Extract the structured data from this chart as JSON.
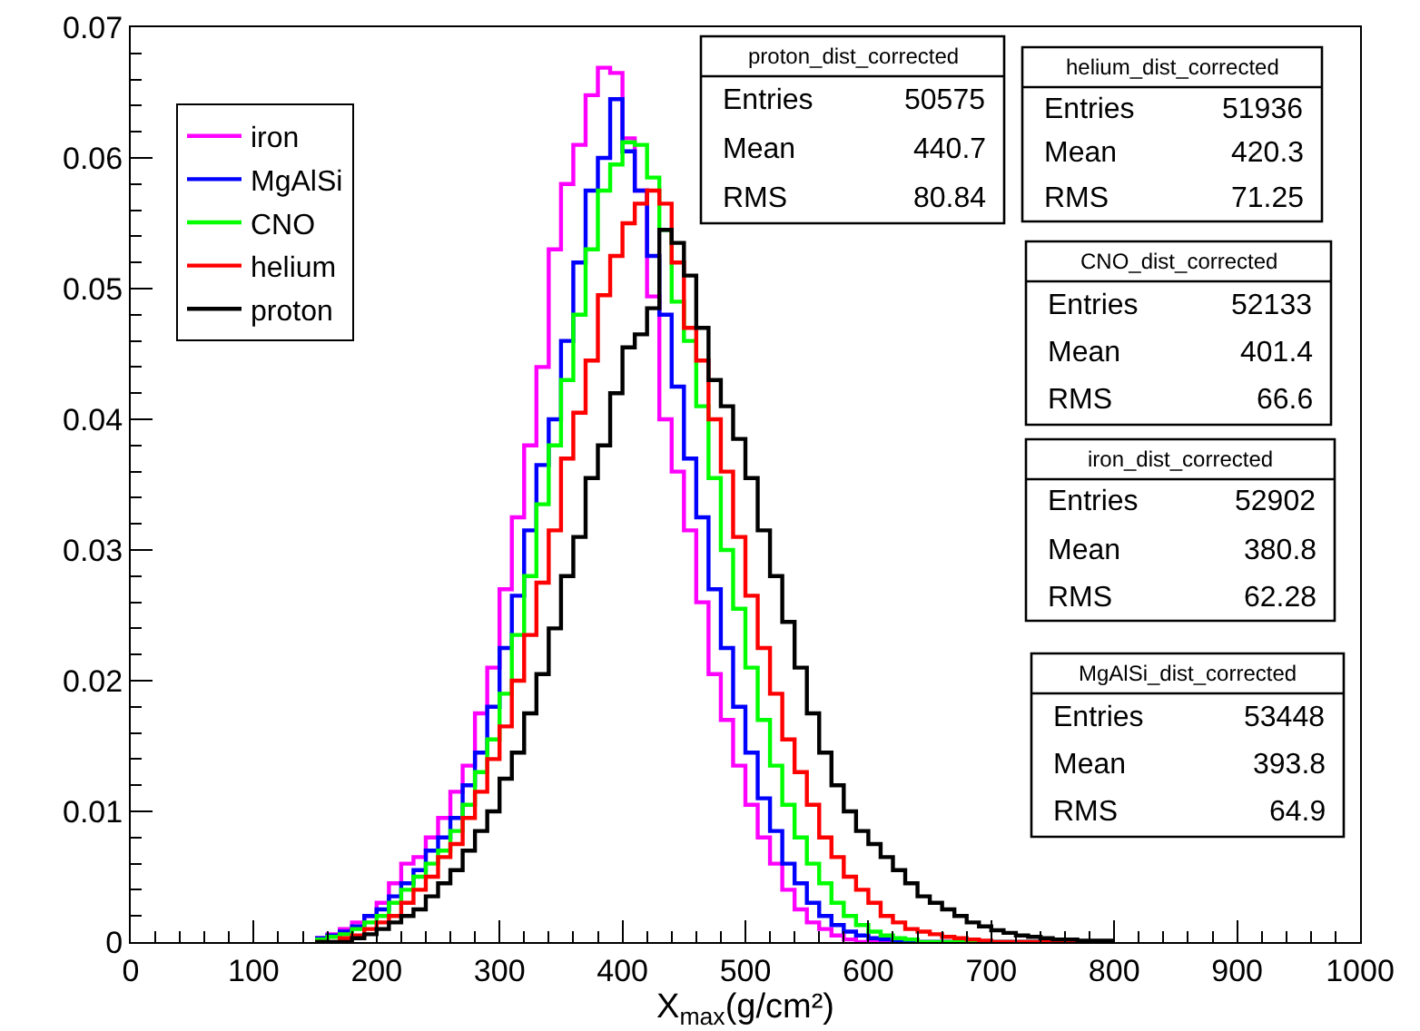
{
  "chart_data": {
    "type": "histogram",
    "xlabel": "X$_{max}$(g/cm²)",
    "bins": [
      150,
      160,
      170,
      180,
      190,
      200,
      210,
      220,
      230,
      240,
      250,
      260,
      270,
      280,
      290,
      300,
      310,
      320,
      330,
      340,
      350,
      360,
      370,
      380,
      390,
      400,
      410,
      420,
      430,
      440,
      450,
      460,
      470,
      480,
      490,
      500,
      510,
      520,
      530,
      540,
      550,
      560,
      570,
      580,
      590,
      600,
      610,
      620,
      630,
      640,
      650,
      660,
      670,
      680,
      690,
      700,
      710,
      720,
      730,
      740,
      750,
      760,
      770,
      780,
      790,
      800
    ],
    "series": [
      {
        "name": "iron",
        "color": "#ff00ff",
        "values": [
          0.0003,
          0.0006,
          0.001,
          0.0015,
          0.002,
          0.003,
          0.0045,
          0.006,
          0.0065,
          0.008,
          0.0095,
          0.0115,
          0.0135,
          0.0175,
          0.021,
          0.027,
          0.0325,
          0.038,
          0.044,
          0.053,
          0.058,
          0.061,
          0.0648,
          0.0669,
          0.0665,
          0.0615,
          0.0575,
          0.0494,
          0.04,
          0.036,
          0.0315,
          0.026,
          0.0205,
          0.017,
          0.0135,
          0.0105,
          0.008,
          0.006,
          0.004,
          0.0025,
          0.0015,
          0.001,
          0.0005,
          0.0002,
          0,
          0,
          0,
          0,
          0,
          0,
          0,
          0,
          0,
          0,
          0,
          0,
          0,
          0,
          0,
          0,
          0,
          0,
          0,
          0,
          0
        ]
      },
      {
        "name": "MgAlSi",
        "color": "#0000ff",
        "values": [
          0.0003,
          0.0005,
          0.0008,
          0.0012,
          0.002,
          0.0025,
          0.0035,
          0.0045,
          0.0055,
          0.007,
          0.008,
          0.0095,
          0.012,
          0.0145,
          0.018,
          0.0225,
          0.0265,
          0.0315,
          0.0365,
          0.04,
          0.046,
          0.052,
          0.0575,
          0.06,
          0.0645,
          0.0605,
          0.0575,
          0.0525,
          0.048,
          0.0425,
          0.037,
          0.0325,
          0.027,
          0.0225,
          0.018,
          0.0145,
          0.011,
          0.0085,
          0.006,
          0.0045,
          0.003,
          0.002,
          0.0013,
          0.0008,
          0.0005,
          0.0003,
          0.0002,
          0,
          0,
          0,
          0,
          0,
          0,
          0,
          0,
          0,
          0,
          0,
          0,
          0,
          0,
          0,
          0,
          0,
          0
        ]
      },
      {
        "name": "CNO",
        "color": "#00ff00",
        "values": [
          0.0002,
          0.0004,
          0.0006,
          0.001,
          0.0015,
          0.002,
          0.003,
          0.004,
          0.005,
          0.006,
          0.007,
          0.0085,
          0.0105,
          0.013,
          0.0155,
          0.019,
          0.0235,
          0.028,
          0.0335,
          0.038,
          0.043,
          0.048,
          0.053,
          0.0575,
          0.0595,
          0.0612,
          0.061,
          0.0585,
          0.0545,
          0.049,
          0.046,
          0.041,
          0.0355,
          0.03,
          0.0255,
          0.021,
          0.017,
          0.0135,
          0.0105,
          0.008,
          0.006,
          0.0045,
          0.003,
          0.002,
          0.0013,
          0.0008,
          0.0005,
          0.0003,
          0.0002,
          0,
          0,
          0,
          0,
          0,
          0,
          0,
          0,
          0,
          0,
          0,
          0,
          0,
          0,
          0,
          0
        ]
      },
      {
        "name": "helium",
        "color": "#ff0000",
        "values": [
          0,
          0,
          0.0003,
          0.0005,
          0.001,
          0.0015,
          0.002,
          0.003,
          0.004,
          0.005,
          0.0065,
          0.0075,
          0.0095,
          0.0115,
          0.014,
          0.0165,
          0.02,
          0.0235,
          0.0275,
          0.0315,
          0.037,
          0.0405,
          0.0445,
          0.0495,
          0.0525,
          0.055,
          0.0565,
          0.0575,
          0.0565,
          0.052,
          0.047,
          0.0445,
          0.04,
          0.036,
          0.031,
          0.0265,
          0.0225,
          0.019,
          0.0155,
          0.013,
          0.0105,
          0.008,
          0.0065,
          0.005,
          0.004,
          0.003,
          0.002,
          0.0015,
          0.001,
          0.0008,
          0.0006,
          0.0004,
          0.0003,
          0.0002,
          0.0001,
          0,
          0,
          0,
          0,
          0,
          0,
          0,
          0,
          0,
          0
        ]
      },
      {
        "name": "proton",
        "color": "#000000",
        "values": [
          0,
          0,
          0,
          0.0003,
          0.0006,
          0.001,
          0.0015,
          0.002,
          0.0025,
          0.0035,
          0.0045,
          0.0055,
          0.007,
          0.0085,
          0.01,
          0.0125,
          0.0145,
          0.0175,
          0.0205,
          0.024,
          0.028,
          0.031,
          0.0355,
          0.038,
          0.042,
          0.0455,
          0.0465,
          0.0485,
          0.0545,
          0.0535,
          0.051,
          0.047,
          0.043,
          0.041,
          0.0385,
          0.0355,
          0.0315,
          0.028,
          0.0245,
          0.021,
          0.0175,
          0.0145,
          0.012,
          0.01,
          0.0085,
          0.0075,
          0.0065,
          0.0055,
          0.0045,
          0.0035,
          0.003,
          0.0025,
          0.002,
          0.0015,
          0.0012,
          0.0009,
          0.0007,
          0.0005,
          0.0004,
          0.0003,
          0.0002,
          0.0002,
          0.0001,
          0.0001,
          0.0001
        ]
      }
    ],
    "annotations": [
      "proton_dist_corrected\nEntries 50575\nMean 440.7\nRMS 80.84",
      "helium_dist_corrected\nEntries 51936\nMean 420.3\nRMS 71.25",
      "CNO_dist_corrected\nEntries 52133\nMean 401.4\nRMS 66.6",
      "iron_dist_corrected\nEntries 52902\nMean 380.8\nRMS 62.28",
      "MgAlSi_dist_corrected\nEntries 53448\nMean 393.8\nRMS 64.9"
    ],
    "xlim": [
      0,
      1000
    ],
    "xticks": [
      0,
      {
        "value": 20,
        "label": null
      },
      {
        "value": 40,
        "label": null
      },
      {
        "value": 60,
        "label": null
      },
      {
        "value": 80,
        "label": null
      },
      100,
      {
        "value": 120,
        "label": null
      },
      {
        "value": 140,
        "label": null
      },
      {
        "value": 160,
        "label": null
      },
      {
        "value": 180,
        "label": null
      },
      200,
      {
        "value": 220,
        "label": null
      },
      {
        "value": 240,
        "label": null
      },
      {
        "value": 260,
        "label": null
      },
      {
        "value": 280,
        "label": null
      },
      300,
      {
        "value": 320,
        "label": null
      },
      {
        "value": 340,
        "label": null
      },
      {
        "value": 360,
        "label": null
      },
      {
        "value": 380,
        "label": null
      },
      400,
      {
        "value": 420,
        "label": null
      },
      {
        "value": 440,
        "label": null
      },
      {
        "value": 460,
        "label": null
      },
      {
        "value": 480,
        "label": null
      },
      500,
      {
        "value": 520,
        "label": null
      },
      {
        "value": 540,
        "label": null
      },
      {
        "value": 560,
        "label": null
      },
      {
        "value": 580,
        "label": null
      },
      600,
      {
        "value": 620,
        "label": null
      },
      {
        "value": 640,
        "label": null
      },
      {
        "value": 660,
        "label": null
      },
      {
        "value": 680,
        "label": null
      },
      700,
      {
        "value": 720,
        "label": null
      },
      {
        "value": 740,
        "label": null
      },
      {
        "value": 760,
        "label": null
      },
      {
        "value": 780,
        "label": null
      },
      800,
      {
        "value": 820,
        "label": null
      },
      {
        "value": 840,
        "label": null
      },
      {
        "value": 860,
        "label": null
      },
      {
        "value": 880,
        "label": null
      },
      900,
      {
        "value": 920,
        "label": null
      },
      {
        "value": 940,
        "label": null
      },
      {
        "value": 960,
        "label": null
      },
      {
        "value": 980,
        "label": null
      },
      1000
    ],
    "ylim": [
      0,
      0.07
    ],
    "yticks": [
      0,
      {
        "value": 0.002,
        "label": null
      },
      {
        "value": 0.004,
        "label": null
      },
      {
        "value": 0.006,
        "label": null
      },
      {
        "value": 0.008,
        "label": null
      },
      0.01,
      {
        "value": 0.012,
        "label": null
      },
      {
        "value": 0.014,
        "label": null
      },
      {
        "value": 0.016,
        "label": null
      },
      {
        "value": 0.018,
        "label": null
      },
      0.02,
      {
        "value": 0.022,
        "label": null
      },
      {
        "value": 0.024,
        "label": null
      },
      {
        "value": 0.026,
        "label": null
      },
      {
        "value": 0.028,
        "label": null
      },
      0.03,
      {
        "value": 0.032,
        "label": null
      },
      {
        "value": 0.034,
        "label": null
      },
      {
        "value": 0.036,
        "label": null
      },
      {
        "value": 0.038,
        "label": null
      },
      0.04,
      {
        "value": 0.042,
        "label": null
      },
      {
        "value": 0.044,
        "label": null
      },
      {
        "value": 0.046,
        "label": null
      },
      {
        "value": 0.048,
        "label": null
      },
      0.05,
      {
        "value": 0.052,
        "label": null
      },
      {
        "value": 0.054,
        "label": null
      },
      {
        "value": 0.056,
        "label": null
      },
      {
        "value": 0.058,
        "label": null
      },
      0.06,
      {
        "value": 0.062,
        "label": null
      },
      {
        "value": 0.064,
        "label": null
      },
      {
        "value": 0.066,
        "label": null
      },
      {
        "value": 0.068,
        "label": null
      },
      0.07
    ],
    "legend": "top left",
    "line_style": "solid",
    "marker": "none"
  }
}
